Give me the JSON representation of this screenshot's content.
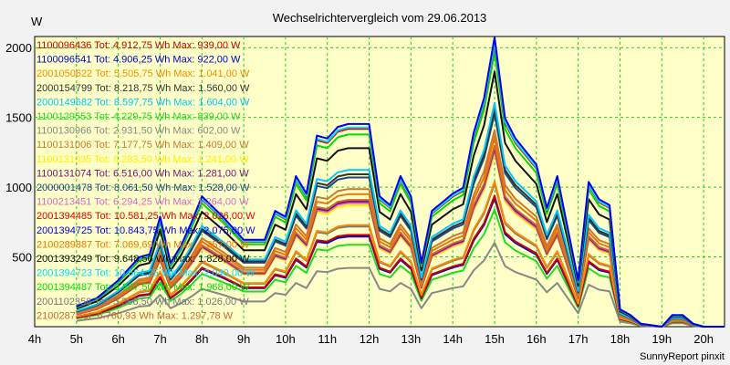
{
  "chart_data": {
    "type": "line",
    "title": "Wechselrichtervergleich vom 29.06.2013",
    "ylabel": "W",
    "xlabel": "",
    "footer": "SunnyReport pinxit",
    "ylim": [
      0,
      2080
    ],
    "xlim": [
      4,
      20.5
    ],
    "grid": true,
    "legend_placement": "top-left",
    "y_ticks": [
      {
        "value": 500,
        "label": "500"
      },
      {
        "value": 1000,
        "label": "1000"
      },
      {
        "value": 1500,
        "label": "1500"
      },
      {
        "value": 2000,
        "label": "2000"
      }
    ],
    "x_ticks": [
      {
        "value": 4,
        "label": "4h"
      },
      {
        "value": 5,
        "label": "5h"
      },
      {
        "value": 6,
        "label": "6h"
      },
      {
        "value": 7,
        "label": "7h"
      },
      {
        "value": 8,
        "label": "8h"
      },
      {
        "value": 9,
        "label": "9h"
      },
      {
        "value": 10,
        "label": "10h"
      },
      {
        "value": 11,
        "label": "11h"
      },
      {
        "value": 12,
        "label": "12h"
      },
      {
        "value": 13,
        "label": "13h"
      },
      {
        "value": 14,
        "label": "14h"
      },
      {
        "value": 15,
        "label": "15h"
      },
      {
        "value": 16,
        "label": "16h"
      },
      {
        "value": 17,
        "label": "17h"
      },
      {
        "value": 18,
        "label": "18h"
      },
      {
        "value": 19,
        "label": "19h"
      },
      {
        "value": 20,
        "label": "20h"
      }
    ],
    "x": [
      5,
      5.5,
      6,
      6.5,
      6.75,
      7,
      7.25,
      7.5,
      7.75,
      8,
      8.5,
      9,
      9.5,
      9.75,
      10,
      10.25,
      10.5,
      10.75,
      11,
      11.25,
      11.5,
      12,
      12.25,
      12.5,
      12.75,
      13,
      13.25,
      13.5,
      14,
      14.25,
      14.5,
      14.75,
      15,
      15.25,
      15.5,
      16,
      16.25,
      16.5,
      17,
      17.25,
      17.5,
      17.75,
      18,
      18.25,
      18.5,
      19,
      19.25,
      19.5,
      19.75,
      20,
      20.5
    ],
    "base_profile": [
      0.07,
      0.1,
      0.16,
      0.24,
      0.25,
      0.38,
      0.22,
      0.28,
      0.36,
      0.45,
      0.38,
      0.3,
      0.3,
      0.4,
      0.38,
      0.52,
      0.46,
      0.66,
      0.65,
      0.69,
      0.7,
      0.7,
      0.45,
      0.42,
      0.52,
      0.45,
      0.22,
      0.4,
      0.46,
      0.48,
      0.67,
      0.79,
      1.0,
      0.72,
      0.65,
      0.56,
      0.41,
      0.52,
      0.16,
      0.5,
      0.44,
      0.42,
      0.06,
      0.04,
      0.01,
      0.0,
      0.04,
      0.04,
      0.01,
      0.0,
      0.0
    ],
    "series": [
      {
        "name": "1100096436",
        "legend": "1100096436 Tot: 4.912,75 Wh Max: 939,00 W",
        "max": 939,
        "color": "#cc0000"
      },
      {
        "name": "1100096541",
        "legend": "1100096541 Tot: 4.906,25 Wh Max: 922,00 W",
        "max": 922,
        "color": "#0000cc"
      },
      {
        "name": "2001050622",
        "legend": "2001050622 Tot: 5.505,75 Wh Max: 1.041,00 W",
        "max": 1041,
        "color": "#ff8800"
      },
      {
        "name": "2000154799",
        "legend": "2000154799 Tot: 8.218,75 Wh Max: 1.560,00 W",
        "max": 1560,
        "color": "#333333"
      },
      {
        "name": "2000149682",
        "legend": "2000149682 Tot: 8.597,75 Wh Max: 1.604,00 W",
        "max": 1604,
        "color": "#00c8ff"
      },
      {
        "name": "1100129553",
        "legend": "1100129553 Tot: 4.229,75 Wh Max: 839,00 W",
        "max": 839,
        "color": "#22dd22"
      },
      {
        "name": "1100130966",
        "legend": "1100130966 Tot: 2.931,50 Wh Max: 602,00 W",
        "max": 602,
        "color": "#888888"
      },
      {
        "name": "1100131006",
        "legend": "1100131006 Tot: 7.177,75 Wh Max: 1.409,00 W",
        "max": 1409,
        "color": "#cc7733"
      },
      {
        "name": "1100131035",
        "legend": "1100131035 Tot: 6.283,50 Wh Max: 1.241,00 W",
        "max": 1241,
        "color": "#ffee00"
      },
      {
        "name": "1100131074",
        "legend": "1100131074 Tot: 6.516,00 Wh Max: 1.281,00 W",
        "max": 1281,
        "color": "#771177"
      },
      {
        "name": "2000001478",
        "legend": "2000001478 Tot: 8.061,50 Wh Max: 1.528,00 W",
        "max": 1528,
        "color": "#224488"
      },
      {
        "name": "1100213451",
        "legend": "1100213451 Tot: 6.294,25 Wh Max: 1.264,00 W",
        "max": 1264,
        "color": "#dd66cc"
      },
      {
        "name": "2001394485",
        "legend": "2001394485 Tot: 10.581,25 Wh Max: 2.026,00 W",
        "max": 2026,
        "color": "#dd0000"
      },
      {
        "name": "2001394725",
        "legend": "2001394725 Tot: 10.843,75 Wh Max: 2.075,00 W",
        "max": 2075,
        "color": "#0000ee"
      },
      {
        "name": "2100289887",
        "legend": "2100289887 Tot: 7.069,69 Wh Max: 1.357,00 W",
        "max": 1357,
        "color": "#ee7700"
      },
      {
        "name": "2001393249",
        "legend": "2001393249 Tot: 9.648,50 Wh Max: 1.828,00 W",
        "max": 1828,
        "color": "#111111"
      },
      {
        "name": "2001394723",
        "legend": "2001394723 Tot: 10.664,25 Wh Max: 2.040,00 W",
        "max": 2040,
        "color": "#00ddff"
      },
      {
        "name": "2001394487",
        "legend": "2001394487 Tot: 9.867,50 Wh Max: 1.968,00 W",
        "max": 1968,
        "color": "#00dd00"
      },
      {
        "name": "2001102358",
        "legend": "2001102358 Tot: 5.366,50 Wh Max: 1.026,00 W",
        "max": 1026,
        "color": "#777777"
      },
      {
        "name": "2100287",
        "legend": "2100287 Tot: 6.760,93 Wh Max: 1.297,78 W",
        "max": 1297.78,
        "color": "#cc6633"
      }
    ]
  }
}
